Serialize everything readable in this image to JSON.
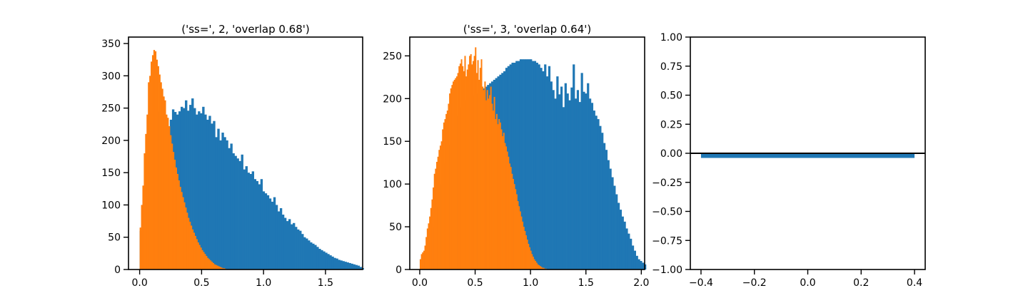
{
  "colors": {
    "series_a": "#1f77b4",
    "series_b": "#ff7f0e",
    "axis": "#000000",
    "background": "#ffffff"
  },
  "chart_data": [
    {
      "type": "bar",
      "subtype": "histogram",
      "title": "('ss=', 2, 'overlap 0.68')",
      "xlabel": "",
      "ylabel": "",
      "xlim": [
        -0.09,
        1.8
      ],
      "ylim": [
        0,
        360
      ],
      "xticks": [
        0.0,
        0.5,
        1.0,
        1.5
      ],
      "xtick_labels": [
        "0.0",
        "0.5",
        "1.0",
        "1.5"
      ],
      "yticks": [
        0,
        50,
        100,
        150,
        200,
        250,
        300,
        350
      ],
      "ytick_labels": [
        "0",
        "50",
        "100",
        "150",
        "200",
        "250",
        "300",
        "350"
      ],
      "grid": false,
      "legend": "none",
      "series": [
        {
          "color": "#1f77b4",
          "bin_start": 0.0,
          "bin_width": 0.0174,
          "values": [
            60,
            95,
            150,
            200,
            215,
            240,
            250,
            248,
            245,
            238,
            230,
            222,
            215,
            222,
            232,
            248,
            244,
            240,
            245,
            252,
            250,
            262,
            246,
            255,
            265,
            250,
            240,
            245,
            242,
            252,
            240,
            232,
            238,
            226,
            230,
            205,
            218,
            200,
            212,
            205,
            200,
            188,
            195,
            180,
            176,
            172,
            168,
            178,
            155,
            160,
            150,
            148,
            152,
            140,
            137,
            132,
            140,
            121,
            118,
            115,
            110,
            105,
            112,
            100,
            90,
            95,
            85,
            80,
            75,
            78,
            70,
            72,
            66,
            62,
            60,
            55,
            50,
            48,
            45,
            42,
            40,
            38,
            35,
            32,
            30,
            28,
            26,
            24,
            22,
            20,
            18,
            17,
            15,
            14,
            13,
            12,
            11,
            10,
            9,
            8,
            7,
            6,
            4,
            2
          ]
        },
        {
          "color": "#ff7f0e",
          "bin_start": 0.0,
          "bin_width": 0.0111,
          "values": [
            65,
            100,
            130,
            180,
            210,
            240,
            290,
            300,
            322,
            332,
            340,
            338,
            325,
            315,
            302,
            290,
            280,
            268,
            262,
            240,
            235,
            222,
            208,
            195,
            182,
            170,
            158,
            148,
            138,
            128,
            120,
            112,
            104,
            96,
            88,
            80,
            74,
            68,
            62,
            57,
            52,
            47,
            42,
            38,
            34,
            30,
            27,
            24,
            21,
            18,
            16,
            14,
            12,
            10,
            8,
            7,
            6,
            5,
            4,
            3,
            2,
            2,
            1
          ]
        }
      ]
    },
    {
      "type": "bar",
      "subtype": "histogram",
      "title": "('ss=', 3, 'overlap 0.64')",
      "xlabel": "",
      "ylabel": "",
      "xlim": [
        -0.09,
        2.03
      ],
      "ylim": [
        0,
        272
      ],
      "xticks": [
        0.0,
        0.5,
        1.0,
        1.5,
        2.0
      ],
      "xtick_labels": [
        "0.0",
        "0.5",
        "1.0",
        "1.5",
        "2.0"
      ],
      "yticks": [
        0,
        50,
        100,
        150,
        200,
        250
      ],
      "ytick_labels": [
        "0",
        "50",
        "100",
        "150",
        "200",
        "250"
      ],
      "grid": false,
      "legend": "none",
      "series": [
        {
          "color": "#1f77b4",
          "bin_start": 0.0,
          "bin_width": 0.0184,
          "values": [
            12,
            16,
            20,
            26,
            32,
            40,
            50,
            62,
            74,
            88,
            100,
            112,
            124,
            136,
            146,
            156,
            164,
            172,
            180,
            186,
            190,
            194,
            198,
            200,
            202,
            204,
            204,
            206,
            206,
            208,
            210,
            212,
            214,
            216,
            218,
            220,
            222,
            224,
            226,
            228,
            230,
            232,
            236,
            238,
            240,
            242,
            242,
            244,
            244,
            246,
            246,
            246,
            246,
            246,
            246,
            244,
            244,
            242,
            240,
            236,
            232,
            240,
            226,
            238,
            220,
            210,
            200,
            226,
            205,
            214,
            190,
            218,
            206,
            198,
            213,
            240,
            200,
            210,
            196,
            230,
            208,
            206,
            218,
            200,
            195,
            186,
            180,
            176,
            168,
            160,
            148,
            140,
            128,
            118,
            108,
            98,
            88,
            78,
            70,
            62,
            56,
            48,
            42,
            36,
            28,
            22,
            16,
            12,
            10,
            8,
            6
          ]
        },
        {
          "color": "#ff7f0e",
          "bin_start": 0.0,
          "bin_width": 0.0106,
          "values": [
            12,
            18,
            20,
            22,
            28,
            38,
            48,
            54,
            62,
            72,
            82,
            96,
            112,
            118,
            126,
            132,
            140,
            145,
            150,
            164,
            172,
            176,
            182,
            186,
            194,
            206,
            212,
            216,
            220,
            222,
            224,
            226,
            230,
            238,
            241,
            246,
            238,
            232,
            250,
            226,
            234,
            240,
            250,
            252,
            240,
            244,
            250,
            260,
            230,
            245,
            222,
            236,
            246,
            214,
            210,
            220,
            198,
            210,
            200,
            204,
            214,
            194,
            186,
            202,
            176,
            182,
            170,
            176,
            172,
            164,
            156,
            160,
            148,
            144,
            138,
            132,
            124,
            120,
            112,
            106,
            100,
            94,
            88,
            80,
            74,
            68,
            62,
            56,
            50,
            45,
            40,
            35,
            30,
            26,
            22,
            18,
            15,
            12,
            10,
            8,
            6,
            5,
            4,
            3,
            2,
            2,
            1,
            1
          ]
        }
      ]
    },
    {
      "type": "bar",
      "title": "",
      "xlabel": "",
      "ylabel": "",
      "xlim": [
        -0.44,
        0.44
      ],
      "ylim": [
        -1.0,
        1.0
      ],
      "xticks": [
        -0.4,
        -0.2,
        0.0,
        0.2,
        0.4
      ],
      "xtick_labels": [
        "−0.4",
        "−0.2",
        "0.0",
        "0.2",
        "0.4"
      ],
      "yticks": [
        -1.0,
        -0.75,
        -0.5,
        -0.25,
        0.0,
        0.25,
        0.5,
        0.75,
        1.0
      ],
      "ytick_labels": [
        "−1.00",
        "−0.75",
        "−0.50",
        "−0.25",
        "0.00",
        "0.25",
        "0.50",
        "0.75",
        "1.00"
      ],
      "grid": false,
      "legend": "none",
      "bars": [
        {
          "x_left": -0.4,
          "x_right": 0.4,
          "value": -0.04,
          "color": "#1f77b4"
        }
      ],
      "hlines": [
        {
          "y": 0.0,
          "color": "#000000"
        }
      ]
    }
  ]
}
